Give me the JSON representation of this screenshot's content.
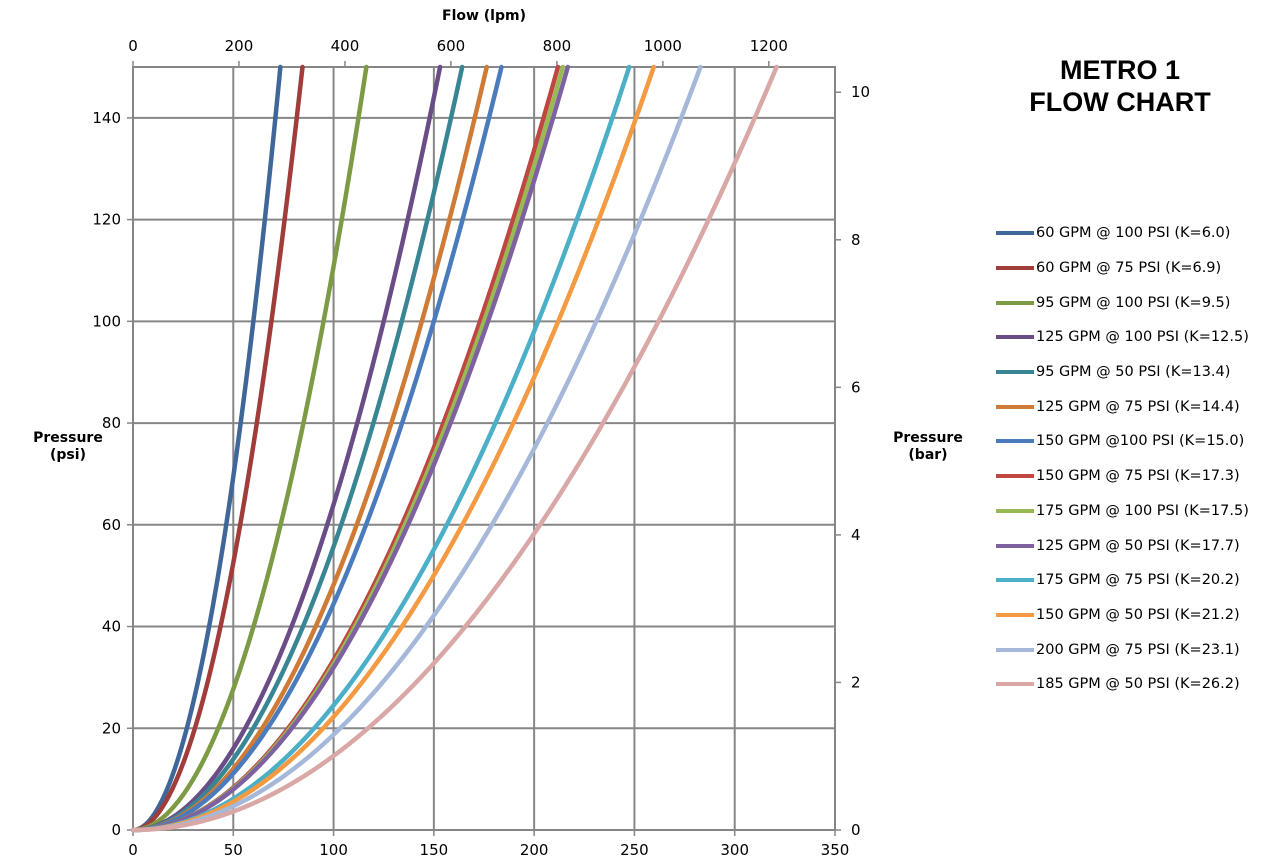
{
  "chart_data": {
    "type": "line",
    "title": [
      "METRO 1",
      "FLOW CHART"
    ],
    "xlabel_bottom": "",
    "xlabel_top": "Flow (lpm)",
    "ylabel_left": [
      "Pressure",
      "(psi)"
    ],
    "ylabel_right": [
      "Pressure",
      "(bar)"
    ],
    "x_bottom_range": [
      0,
      350
    ],
    "x_bottom_ticks": [
      "0",
      "50",
      "100",
      "150",
      "200",
      "250",
      "300",
      "350"
    ],
    "x_top_ticks": [
      "0",
      "200",
      "400",
      "600",
      "800",
      "1000",
      "1200"
    ],
    "y_left_range": [
      0,
      150
    ],
    "y_left_ticks": [
      "0",
      "20",
      "40",
      "60",
      "80",
      "100",
      "120",
      "140"
    ],
    "y_right_ticks": [
      "0",
      "2",
      "4",
      "6",
      "8",
      "10"
    ],
    "grid": true,
    "legend_position": "right",
    "series": [
      {
        "name": "60 GPM @ 100 PSI (K=6.0)",
        "k": 6.0,
        "color": "#3f679a"
      },
      {
        "name": "60 GPM @ 75 PSI (K=6.9)",
        "k": 6.9,
        "color": "#a03c3a"
      },
      {
        "name": "95 GPM @ 100 PSI (K=9.5)",
        "k": 9.5,
        "color": "#7d9a45"
      },
      {
        "name": "125 GPM @ 100 PSI (K=12.5)",
        "k": 12.5,
        "color": "#6a4c86"
      },
      {
        "name": "95 GPM @ 50 PSI (K=13.4)",
        "k": 13.4,
        "color": "#388694"
      },
      {
        "name": "125 GPM @ 75 PSI (K=14.4)",
        "k": 14.4,
        "color": "#cf7a35"
      },
      {
        "name": "150 GPM @100 PSI (K=15.0)",
        "k": 15.0,
        "color": "#4a7bbd"
      },
      {
        "name": "150 GPM @ 75 PSI (K=17.3)",
        "k": 17.3,
        "color": "#bf4642"
      },
      {
        "name": "175 GPM @ 100 PSI (K=17.5)",
        "k": 17.5,
        "color": "#99b955"
      },
      {
        "name": "125 GPM @ 50 PSI (K=17.7)",
        "k": 17.7,
        "color": "#7e61a0"
      },
      {
        "name": "175 GPM @ 75 PSI (K=20.2)",
        "k": 20.2,
        "color": "#4bafc8"
      },
      {
        "name": "150 GPM @ 50 PSI (K=21.2)",
        "k": 21.2,
        "color": "#f39a42"
      },
      {
        "name": "200 GPM @ 75 PSI (K=23.1)",
        "k": 23.1,
        "color": "#a6b8d9"
      },
      {
        "name": "185 GPM @ 50 PSI (K=26.2)",
        "k": 26.2,
        "color": "#d8a7a6"
      }
    ]
  }
}
